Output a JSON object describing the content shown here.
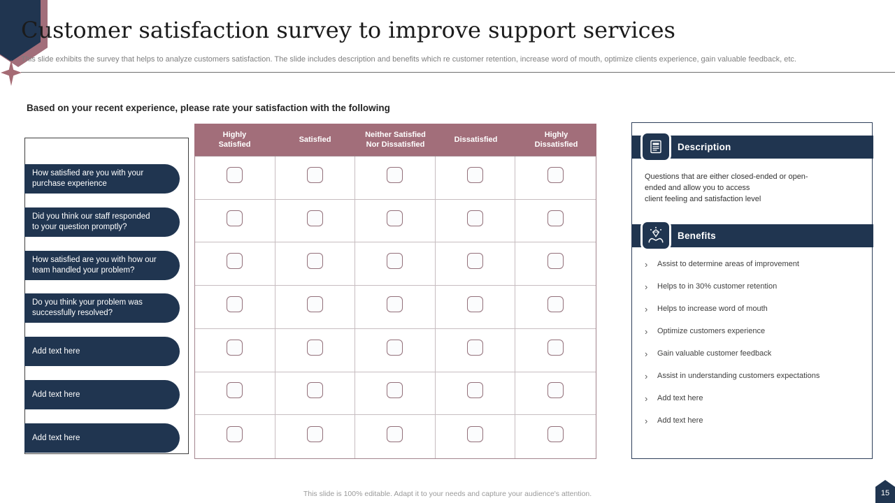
{
  "slide": {
    "title": "Customer satisfaction survey to improve support services",
    "subtitle": "This slide exhibits the survey that helps to analyze customers satisfaction. The slide includes description and benefits which re customer retention, increase word of mouth, optimize clients experience, gain valuable feedback, etc.",
    "section_heading": "Based on your recent experience, please rate your satisfaction with the following",
    "footer": "This slide is 100% editable. Adapt it to your needs and capture your audience's attention.",
    "page_number": "15"
  },
  "survey_table": {
    "columns": [
      "Highly\nSatisfied",
      "Satisfied",
      "Neither Satisfied\nNor Dissatisfied",
      "Dissatisfied",
      "Highly\nDissatisfied"
    ],
    "rows": [
      "How satisfied are you with your purchase experience",
      "Did you think our staff responded to your question promptly?",
      "How satisfied are you with how our team handled your problem?",
      "Do you think your problem was successfully resolved?",
      "Add text here",
      "Add text here",
      "Add text here"
    ],
    "checkbox_state": "unchecked"
  },
  "description_panel": {
    "title": "Description",
    "icon": "document-icon",
    "body_lines": [
      "Questions that are either closed-ended or open-",
      "ended and allow you to access",
      "client feeling and satisfaction level"
    ]
  },
  "benefits_panel": {
    "title": "Benefits",
    "icon": "hands-diamond-icon",
    "bullet_char": "›",
    "items": [
      "Assist to determine areas of improvement",
      "Helps to in 30% customer retention",
      "Helps to increase word of mouth",
      "Optimize customers experience",
      "Gain valuable customer feedback",
      "Assist in understanding customers expectations",
      "Add text here",
      "Add text here"
    ]
  },
  "colors": {
    "navy": "#203550",
    "mauve": "#a26e7a",
    "grid_line": "#c7bdc0",
    "checkbox_border": "#93707a",
    "text_dark": "#262626",
    "text_gray": "#7f7f7f"
  }
}
